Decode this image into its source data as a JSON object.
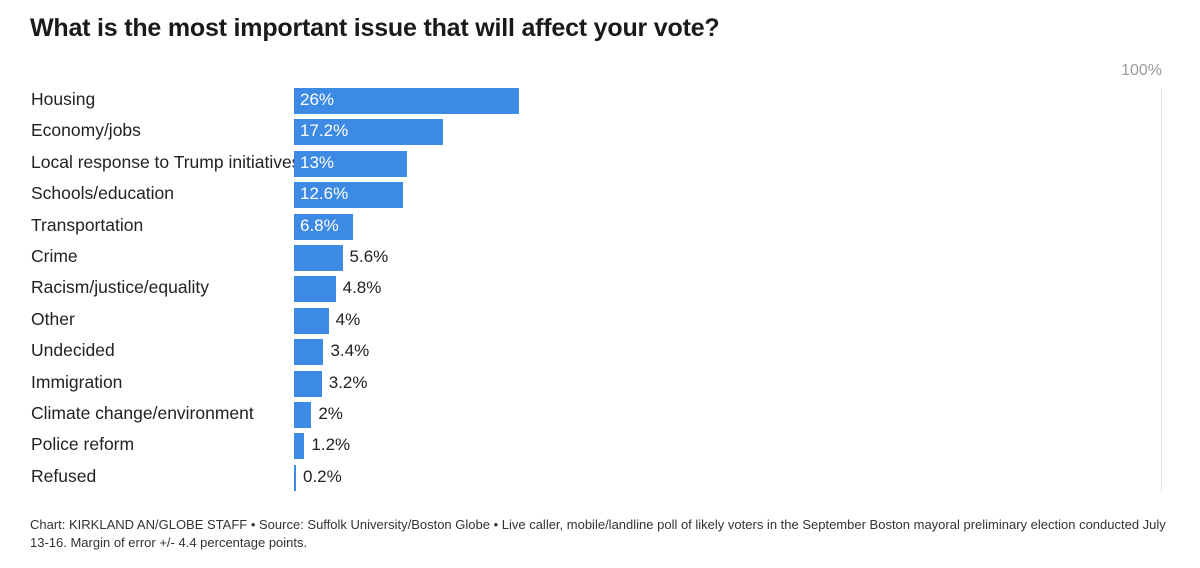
{
  "chart_data": {
    "type": "bar",
    "orientation": "horizontal",
    "title": "What is the most important issue that will affect your vote?",
    "scale_max_label": "100%",
    "xlim": [
      0,
      100
    ],
    "categories": [
      "Housing",
      "Economy/jobs",
      "Local response to Trump initiatives",
      "Schools/education",
      "Transportation",
      "Crime",
      "Racism/justice/equality",
      "Other",
      "Undecided",
      "Immigration",
      "Climate change/environment",
      "Police reform",
      "Refused"
    ],
    "values": [
      26,
      17.2,
      13,
      12.6,
      6.8,
      5.6,
      4.8,
      4,
      3.4,
      3.2,
      2,
      1.2,
      0.2
    ],
    "value_labels": [
      "26%",
      "17.2%",
      "13%",
      "12.6%",
      "6.8%",
      "5.6%",
      "4.8%",
      "4%",
      "3.4%",
      "3.2%",
      "2%",
      "1.2%",
      "0.2%"
    ],
    "bar_color": "#3d8ae5",
    "footer": "Chart: KIRKLAND AN/GLOBE STAFF • Source: Suffolk University/Boston Globe • Live caller, mobile/landline poll of likely voters in the September Boston mayoral preliminary election conducted July 13-16. Margin of error +/- 4.4 percentage points."
  }
}
